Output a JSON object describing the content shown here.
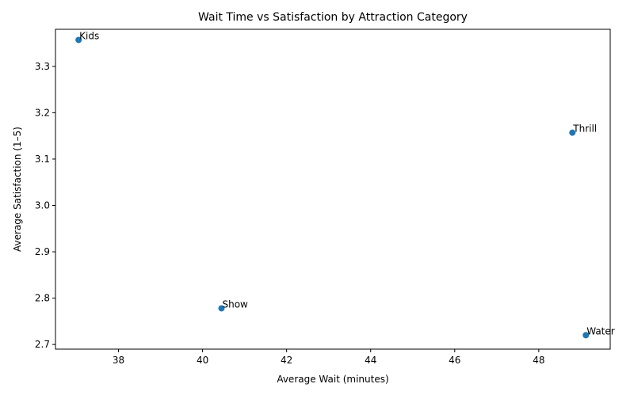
{
  "chart_data": {
    "type": "scatter",
    "title": "Wait Time vs Satisfaction by Attraction Category",
    "xlabel": "Average Wait (minutes)",
    "ylabel": "Average Satisfaction (1–5)",
    "xlim": [
      36.5,
      49.7
    ],
    "ylim": [
      2.69,
      3.38
    ],
    "xticks": [
      38,
      40,
      42,
      44,
      46,
      48
    ],
    "yticks": [
      2.7,
      2.8,
      2.9,
      3.0,
      3.1,
      3.2,
      3.3
    ],
    "xtick_labels": [
      "38",
      "40",
      "42",
      "44",
      "46",
      "48"
    ],
    "ytick_labels": [
      "2.7",
      "2.8",
      "2.9",
      "3.0",
      "3.1",
      "3.2",
      "3.3"
    ],
    "grid": false,
    "marker_color": "#1f77b4",
    "points": [
      {
        "label": "Kids",
        "x": 37.05,
        "y": 3.357
      },
      {
        "label": "Thrill",
        "x": 48.8,
        "y": 3.157
      },
      {
        "label": "Show",
        "x": 40.45,
        "y": 2.778
      },
      {
        "label": "Water",
        "x": 49.12,
        "y": 2.72
      }
    ]
  }
}
